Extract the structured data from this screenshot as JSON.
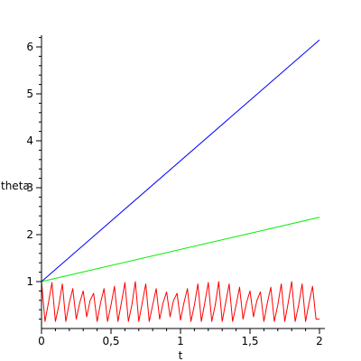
{
  "chart_data": {
    "type": "line",
    "title": "",
    "xlabel": "t",
    "ylabel": "theta",
    "xlim": [
      0,
      2
    ],
    "ylim": [
      0,
      6.25
    ],
    "grid": false,
    "legend": "none",
    "x_ticks": [
      {
        "value": 0,
        "label": "0"
      },
      {
        "value": 0.5,
        "label": "0,5"
      },
      {
        "value": 1,
        "label": "1"
      },
      {
        "value": 1.5,
        "label": "1,5"
      },
      {
        "value": 2,
        "label": "2"
      }
    ],
    "y_ticks": [
      {
        "value": 1,
        "label": "1"
      },
      {
        "value": 2,
        "label": "2"
      },
      {
        "value": 3,
        "label": "3"
      },
      {
        "value": 4,
        "label": "4"
      },
      {
        "value": 5,
        "label": "5"
      },
      {
        "value": 6,
        "label": "6"
      }
    ],
    "series": [
      {
        "color": "#0000ff",
        "x": [
          0,
          2
        ],
        "y": [
          1.0,
          6.15
        ]
      },
      {
        "color": "#00ee00",
        "x": [
          0,
          2
        ],
        "y": [
          1.0,
          2.37
        ]
      },
      {
        "color": "#ff0000",
        "x": [
          0,
          0.025,
          0.05,
          0.075,
          0.1,
          0.125,
          0.15,
          0.175,
          0.2,
          0.225,
          0.25,
          0.275,
          0.3,
          0.325,
          0.35,
          0.375,
          0.4,
          0.425,
          0.45,
          0.475,
          0.5,
          0.525,
          0.55,
          0.575,
          0.6,
          0.625,
          0.65,
          0.675,
          0.7,
          0.725,
          0.75,
          0.775,
          0.8,
          0.825,
          0.85,
          0.875,
          0.9,
          0.925,
          0.95,
          0.975,
          1.0,
          1.025,
          1.05,
          1.075,
          1.1,
          1.125,
          1.15,
          1.175,
          1.2,
          1.225,
          1.25,
          1.275,
          1.3,
          1.325,
          1.35,
          1.375,
          1.4,
          1.425,
          1.45,
          1.475,
          1.5,
          1.525,
          1.55,
          1.575,
          1.6,
          1.625,
          1.65,
          1.675,
          1.7,
          1.725,
          1.75,
          1.775,
          1.8,
          1.825,
          1.85,
          1.875,
          1.9,
          1.925,
          1.95,
          1.975,
          2.0
        ],
        "y": [
          1.0,
          0.15,
          0.55,
          0.98,
          0.15,
          0.5,
          0.95,
          0.15,
          0.55,
          0.85,
          0.2,
          0.55,
          0.8,
          0.25,
          0.6,
          0.75,
          0.15,
          0.55,
          0.85,
          0.15,
          0.5,
          0.9,
          0.15,
          0.55,
          0.98,
          0.15,
          0.5,
          1.0,
          0.15,
          0.55,
          0.95,
          0.15,
          0.5,
          0.85,
          0.2,
          0.55,
          0.78,
          0.25,
          0.6,
          0.75,
          0.18,
          0.55,
          0.85,
          0.15,
          0.5,
          0.95,
          0.15,
          0.55,
          0.98,
          0.15,
          0.5,
          1.0,
          0.15,
          0.55,
          0.95,
          0.15,
          0.5,
          0.88,
          0.2,
          0.55,
          0.8,
          0.25,
          0.6,
          0.78,
          0.15,
          0.55,
          0.88,
          0.15,
          0.5,
          0.95,
          0.15,
          0.55,
          1.0,
          0.15,
          0.5,
          0.95,
          0.15,
          0.55,
          0.9,
          0.2,
          0.2
        ]
      }
    ]
  }
}
